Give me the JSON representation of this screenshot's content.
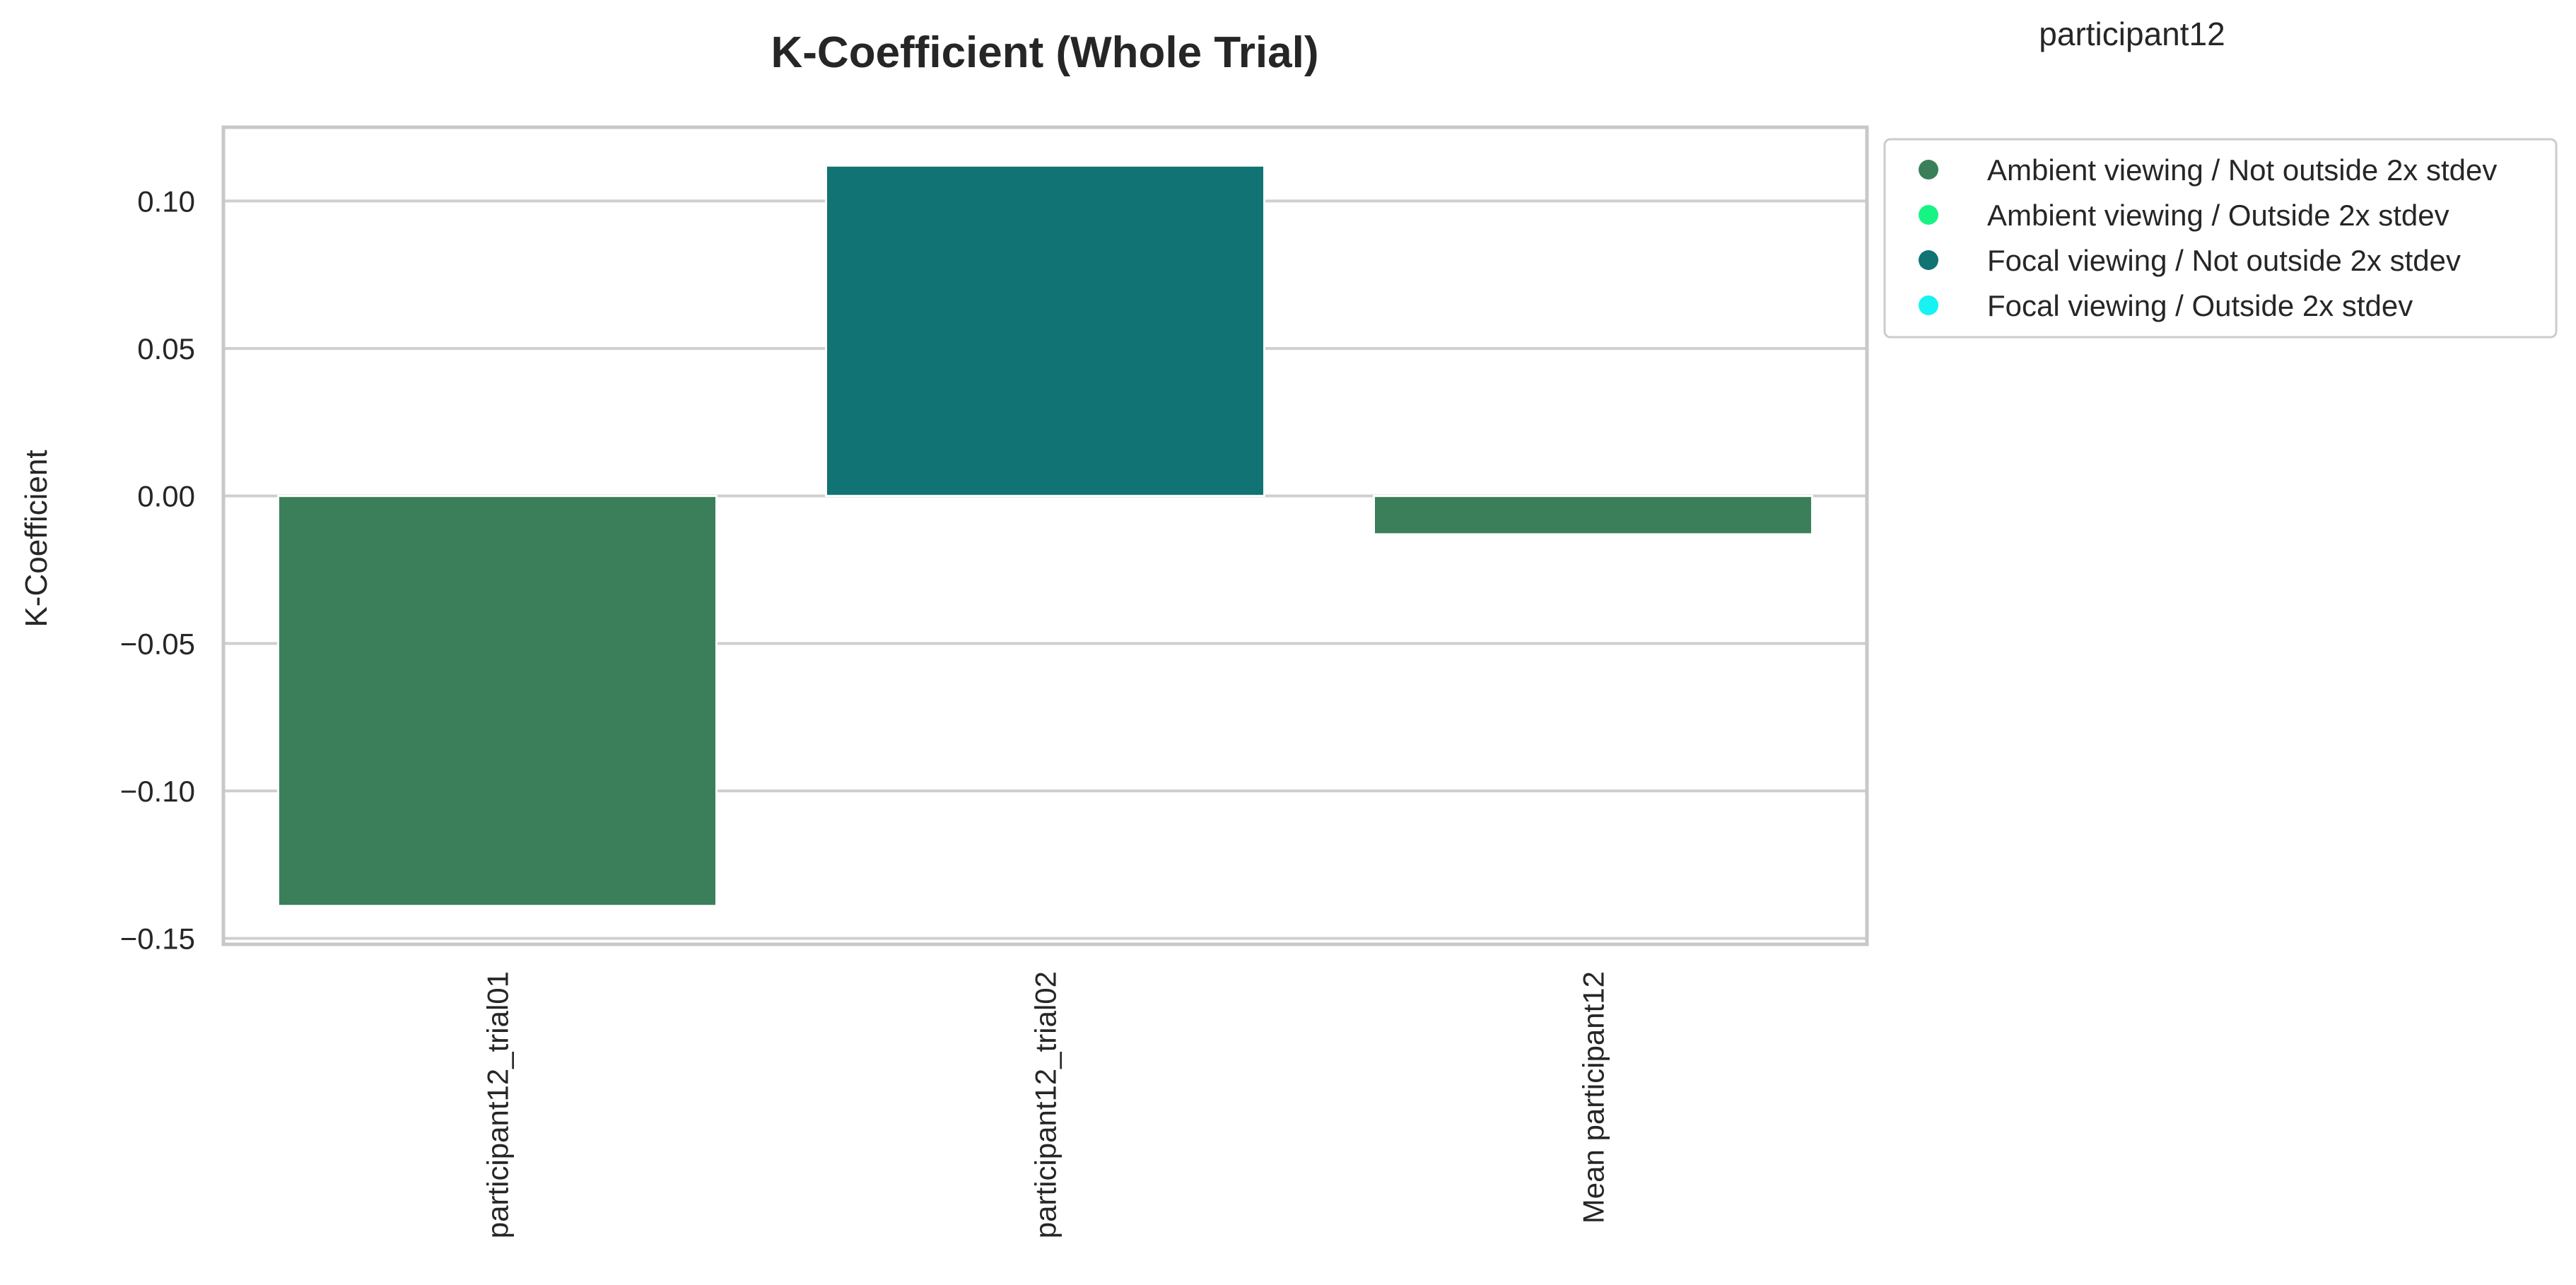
{
  "figure": {
    "corner_label": "participant12"
  },
  "chart_data": {
    "type": "bar",
    "title": "K-Coefficient (Whole Trial)",
    "xlabel": "",
    "ylabel": "K-Coefficient",
    "categories": [
      "participant12_trial01",
      "participant12_trial02",
      "Mean participant12"
    ],
    "values": [
      -0.139,
      0.112,
      -0.013
    ],
    "bar_groups": [
      "Ambient viewing / Not outside 2x stdev",
      "Focal viewing / Not outside 2x stdev",
      "Ambient viewing / Not outside 2x stdev"
    ],
    "ylim": [
      -0.152,
      0.125
    ],
    "yticks": [
      0.1,
      0.05,
      0.0,
      -0.05,
      -0.1,
      -0.15
    ],
    "ytick_labels": [
      "0.10",
      "0.05",
      "0.00",
      "−0.05",
      "−0.10",
      "−0.15"
    ],
    "grid": "horizontal",
    "legend_position": "outside top-right",
    "legend": [
      {
        "label": "Ambient viewing / Not outside 2x stdev",
        "color": "#3a7f59"
      },
      {
        "label": "Ambient viewing / Outside 2x stdev",
        "color": "#18f483"
      },
      {
        "label": "Focal viewing / Not outside 2x stdev",
        "color": "#117373"
      },
      {
        "label": "Focal viewing / Outside 2x stdev",
        "color": "#17f3f3"
      }
    ],
    "colors": {
      "grid": "#cfcfcf",
      "frame": "#c8c8c8"
    }
  }
}
